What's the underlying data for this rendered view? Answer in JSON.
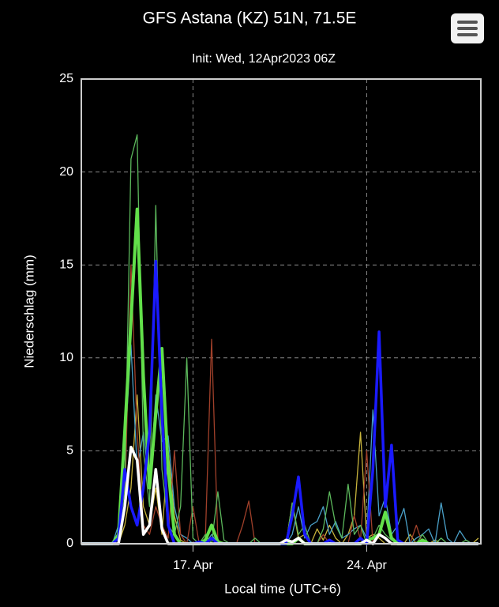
{
  "chart_data": {
    "type": "line",
    "title": "GFS Astana (KZ) 51N, 71.5E",
    "subtitle": "Init: Wed, 12Apr2023 06Z",
    "y_label": "Niederschlag (mm)",
    "x_label": "Local time (UTC+6)",
    "xlim": [
      12.5,
      28.6
    ],
    "ylim": [
      0,
      25
    ],
    "xticks": [
      {
        "value": 17,
        "label": "17. Apr"
      },
      {
        "value": 24,
        "label": "24. Apr"
      }
    ],
    "yticks": [
      0,
      5,
      10,
      15,
      20,
      25
    ],
    "grid": true,
    "x": [
      12.5,
      12.75,
      13,
      13.25,
      13.5,
      13.75,
      14,
      14.25,
      14.5,
      14.75,
      15,
      15.25,
      15.5,
      15.75,
      16,
      16.25,
      16.5,
      16.75,
      17,
      17.25,
      17.5,
      17.75,
      18,
      18.25,
      18.5,
      18.75,
      19,
      19.25,
      19.5,
      19.75,
      20,
      20.25,
      20.5,
      20.75,
      21,
      21.25,
      21.5,
      21.75,
      22,
      22.25,
      22.5,
      22.75,
      23,
      23.25,
      23.5,
      23.75,
      24,
      24.25,
      24.5,
      24.75,
      25,
      25.25,
      25.5,
      25.75,
      26,
      26.25,
      26.5,
      26.75,
      27,
      27.25,
      27.5,
      27.75,
      28,
      28.25,
      28.5
    ],
    "series": [
      {
        "color": "#c8b43c",
        "line_width": 1.3,
        "values": [
          0,
          0,
          0,
          0,
          0,
          0,
          0,
          1,
          3,
          8,
          2,
          1,
          3,
          0.5,
          5,
          1.5,
          0.2,
          0,
          0,
          0,
          0,
          0,
          0,
          0,
          0,
          0,
          0,
          0,
          0,
          0,
          0,
          0,
          0,
          0,
          2.2,
          0.3,
          0.5,
          0,
          0.8,
          0.2,
          1,
          0.3,
          0,
          0.5,
          1.5,
          6,
          0.3,
          0.5,
          0.3,
          0,
          0,
          0,
          0,
          0.5,
          0,
          0,
          0,
          0.2,
          0,
          0,
          0,
          0,
          0,
          0,
          0.3
        ]
      },
      {
        "color": "#4aa0c8",
        "line_width": 1.3,
        "values": [
          0,
          0,
          0,
          0,
          0,
          0,
          1,
          5,
          10.7,
          4,
          6,
          3,
          8,
          5.5,
          5.8,
          2,
          0.5,
          0.3,
          0,
          0,
          0,
          0.5,
          0,
          0,
          0,
          0,
          0,
          0,
          0,
          0,
          0,
          0,
          0,
          0,
          0.5,
          2,
          0.3,
          1,
          1.2,
          2,
          0.5,
          1.2,
          0.3,
          0.5,
          0.8,
          1,
          0.3,
          7.2,
          1.5,
          2.5,
          0.5,
          1,
          1.9,
          0,
          0.3,
          0.5,
          0.8,
          0,
          2.2,
          0.3,
          0,
          0.7,
          0.2,
          0,
          0
        ]
      },
      {
        "color": "#a0402a",
        "line_width": 1.3,
        "values": [
          0,
          0,
          0,
          0,
          0,
          0,
          0,
          2,
          15,
          6,
          1,
          0.5,
          2,
          1,
          0.3,
          5,
          0.5,
          0,
          2,
          0,
          0.3,
          11,
          0.2,
          0,
          0,
          0,
          1,
          2.3,
          0,
          0,
          0,
          0,
          0,
          0,
          0,
          0,
          0,
          0,
          0,
          0.5,
          0,
          0,
          0,
          0,
          1.5,
          0.2,
          5,
          0,
          0.5,
          0.3,
          0,
          0,
          0,
          0,
          1,
          0,
          0,
          0,
          0,
          0,
          0,
          0,
          0,
          0,
          0
        ]
      },
      {
        "color": "#5cb85c",
        "line_width": 1.3,
        "values": [
          0,
          0,
          0,
          0,
          0,
          0,
          0,
          3,
          20.7,
          22,
          5,
          2,
          18.2,
          4,
          1,
          0.5,
          2,
          10,
          0.3,
          0,
          0.5,
          0,
          2.8,
          0.2,
          0,
          0,
          0,
          0,
          0.3,
          0,
          0,
          0,
          0,
          0,
          2.2,
          0.5,
          1,
          0,
          0,
          0.8,
          2.8,
          1,
          0.3,
          3.2,
          0.5,
          1,
          0,
          0.3,
          1,
          0.5,
          0.2,
          0,
          0,
          0,
          0,
          0.5,
          0,
          0,
          0.3,
          0,
          0,
          0,
          0.2,
          0,
          0
        ]
      },
      {
        "color": "#62e04a",
        "line_width": 4,
        "values": [
          0,
          0,
          0,
          0,
          0,
          0,
          0.5,
          6,
          12,
          18,
          9,
          3,
          7,
          10.5,
          4,
          0.5,
          0,
          0,
          0,
          0,
          0.2,
          1,
          0.1,
          0,
          0,
          0,
          0,
          0,
          0,
          0,
          0,
          0,
          0,
          0,
          0,
          0.3,
          0,
          0,
          0,
          0,
          0,
          0,
          0,
          0,
          0,
          0,
          0.2,
          0.3,
          0.5,
          1.7,
          0.3,
          0,
          0,
          0,
          0,
          0.2,
          0,
          0,
          0,
          0,
          0,
          0,
          0,
          0,
          0
        ]
      },
      {
        "color": "#1a1aff",
        "line_width": 3.5,
        "values": [
          0,
          0,
          0,
          0,
          0,
          0,
          0.3,
          4,
          2,
          1,
          3,
          6,
          15.2,
          7,
          1,
          0,
          0,
          0,
          0,
          0.1,
          0,
          0.3,
          0,
          0,
          0,
          0,
          0,
          0,
          0,
          0,
          0,
          0,
          0,
          0,
          1.5,
          3.6,
          0.5,
          0,
          0,
          0,
          0.2,
          0,
          0,
          0,
          0,
          0.3,
          0,
          4,
          11.4,
          2,
          5.3,
          0.2,
          0,
          0,
          0,
          0,
          0,
          0,
          0,
          0,
          0,
          0,
          0,
          0,
          0
        ]
      },
      {
        "color": "#ffffff",
        "line_width": 3.5,
        "values": [
          0,
          0,
          0,
          0,
          0,
          0,
          0,
          2,
          5.2,
          4.5,
          0.5,
          1,
          4,
          0.8,
          0,
          0,
          0,
          0,
          0,
          0,
          0,
          0,
          0,
          0,
          0,
          0,
          0,
          0,
          0,
          0,
          0,
          0,
          0,
          0.2,
          0.1,
          0.3,
          0,
          0,
          0,
          0,
          0,
          0,
          0,
          0,
          0,
          0,
          0.2,
          0,
          0.5,
          0.3,
          0,
          0,
          0,
          0,
          0,
          0,
          0,
          0,
          0,
          0,
          0,
          0,
          0,
          0,
          0
        ]
      }
    ]
  }
}
